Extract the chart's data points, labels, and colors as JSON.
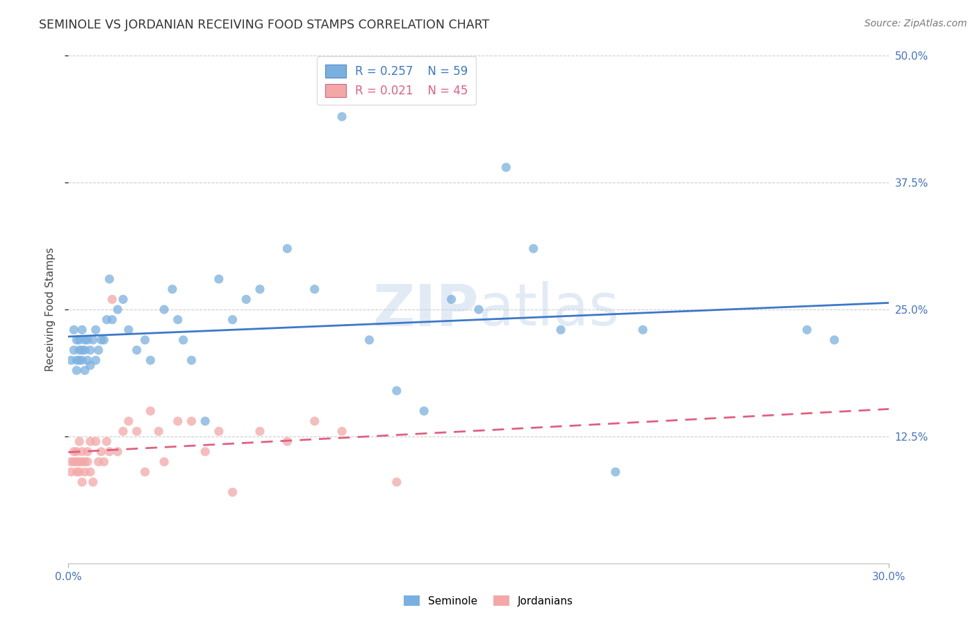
{
  "title": "SEMINOLE VS JORDANIAN RECEIVING FOOD STAMPS CORRELATION CHART",
  "source": "Source: ZipAtlas.com",
  "ylabel": "Receiving Food Stamps",
  "xlim": [
    0.0,
    0.3
  ],
  "ylim": [
    0.0,
    0.5
  ],
  "ytick_labels_right": [
    "50.0%",
    "37.5%",
    "25.0%",
    "12.5%"
  ],
  "ytick_vals_right": [
    0.5,
    0.375,
    0.25,
    0.125
  ],
  "seminole_color": "#7ab0e0",
  "jordanian_color": "#f4a7a7",
  "seminole_line_color": "#3c78c8",
  "jordanian_line_color": "#e06080",
  "watermark": "ZIPatlas",
  "seminole_R": 0.257,
  "seminole_N": 59,
  "jordanian_R": 0.021,
  "jordanian_N": 45,
  "seminole_x": [
    0.001,
    0.002,
    0.002,
    0.003,
    0.003,
    0.003,
    0.004,
    0.004,
    0.004,
    0.005,
    0.005,
    0.005,
    0.006,
    0.006,
    0.006,
    0.007,
    0.007,
    0.008,
    0.008,
    0.009,
    0.01,
    0.01,
    0.011,
    0.012,
    0.013,
    0.014,
    0.015,
    0.016,
    0.018,
    0.02,
    0.022,
    0.025,
    0.028,
    0.03,
    0.035,
    0.038,
    0.04,
    0.042,
    0.045,
    0.05,
    0.055,
    0.06,
    0.065,
    0.07,
    0.08,
    0.09,
    0.1,
    0.11,
    0.12,
    0.13,
    0.14,
    0.15,
    0.16,
    0.17,
    0.18,
    0.2,
    0.21,
    0.27,
    0.28
  ],
  "seminole_y": [
    0.2,
    0.23,
    0.21,
    0.22,
    0.2,
    0.19,
    0.21,
    0.2,
    0.22,
    0.21,
    0.2,
    0.23,
    0.22,
    0.19,
    0.21,
    0.2,
    0.22,
    0.21,
    0.195,
    0.22,
    0.23,
    0.2,
    0.21,
    0.22,
    0.22,
    0.24,
    0.28,
    0.24,
    0.25,
    0.26,
    0.23,
    0.21,
    0.22,
    0.2,
    0.25,
    0.27,
    0.24,
    0.22,
    0.2,
    0.14,
    0.28,
    0.24,
    0.26,
    0.27,
    0.31,
    0.27,
    0.44,
    0.22,
    0.17,
    0.15,
    0.26,
    0.25,
    0.39,
    0.31,
    0.23,
    0.09,
    0.23,
    0.23,
    0.22
  ],
  "jordanian_x": [
    0.001,
    0.001,
    0.002,
    0.002,
    0.003,
    0.003,
    0.003,
    0.004,
    0.004,
    0.004,
    0.005,
    0.005,
    0.005,
    0.006,
    0.006,
    0.007,
    0.007,
    0.008,
    0.008,
    0.009,
    0.01,
    0.011,
    0.012,
    0.013,
    0.014,
    0.015,
    0.016,
    0.018,
    0.02,
    0.022,
    0.025,
    0.028,
    0.03,
    0.033,
    0.035,
    0.04,
    0.045,
    0.05,
    0.055,
    0.06,
    0.07,
    0.08,
    0.09,
    0.1,
    0.12
  ],
  "jordanian_y": [
    0.1,
    0.09,
    0.11,
    0.1,
    0.11,
    0.1,
    0.09,
    0.12,
    0.1,
    0.09,
    0.11,
    0.1,
    0.08,
    0.09,
    0.1,
    0.11,
    0.1,
    0.12,
    0.09,
    0.08,
    0.12,
    0.1,
    0.11,
    0.1,
    0.12,
    0.11,
    0.26,
    0.11,
    0.13,
    0.14,
    0.13,
    0.09,
    0.15,
    0.13,
    0.1,
    0.14,
    0.14,
    0.11,
    0.13,
    0.07,
    0.13,
    0.12,
    0.14,
    0.13,
    0.08
  ],
  "background_color": "#ffffff",
  "grid_color": "#cccccc",
  "axis_label_color": "#4472c4",
  "title_color": "#333333"
}
